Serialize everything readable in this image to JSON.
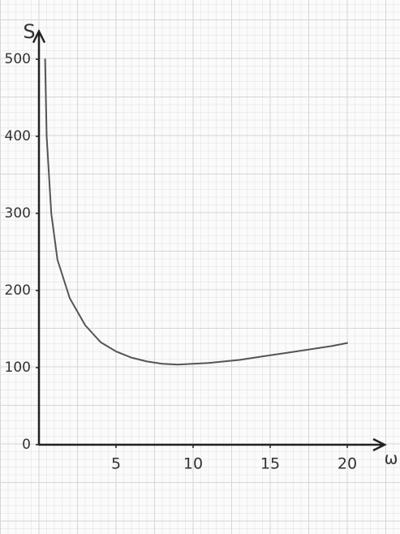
{
  "chart_data": {
    "type": "line",
    "x_label": "ω",
    "y_label": "S",
    "x": [
      0.4,
      0.5,
      0.8,
      1.2,
      2,
      3,
      4,
      5,
      6,
      7,
      8,
      9,
      10,
      11,
      12,
      13,
      14,
      15,
      16,
      17,
      18,
      19,
      20
    ],
    "series": [
      {
        "color": "#555555",
        "values": [
          500,
          400,
          300,
          240,
          190,
          155,
          133,
          121,
          113,
          108,
          105,
          104,
          105,
          106,
          108,
          110,
          113,
          116,
          119,
          122,
          125,
          128,
          132
        ]
      }
    ],
    "xlim": [
      0,
      22
    ],
    "ylim": [
      0,
      530
    ],
    "xticks": [
      5,
      10,
      15,
      20
    ],
    "yticks": [
      0,
      100,
      200,
      300,
      400,
      500
    ]
  }
}
